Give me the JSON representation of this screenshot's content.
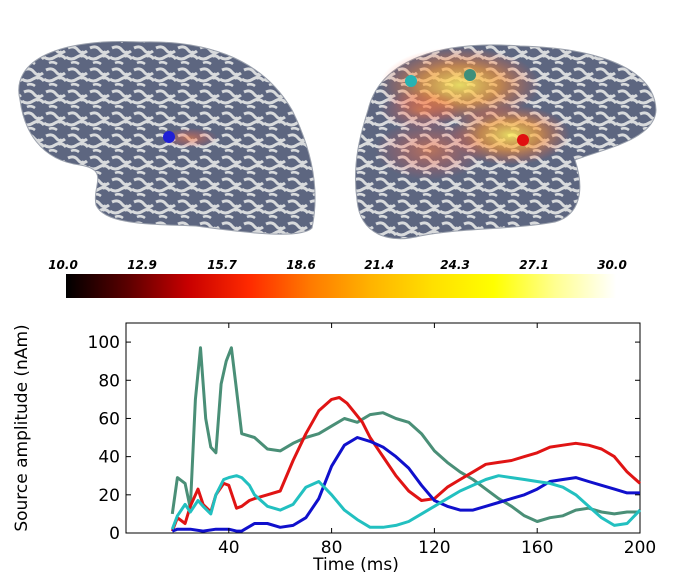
{
  "colorbar": {
    "ticks": [
      "10.0",
      "12.9",
      "15.7",
      "18.6",
      "21.4",
      "24.3",
      "27.1",
      "30.0"
    ],
    "colors": [
      "#000000",
      "#5a0000",
      "#c80000",
      "#ff2a00",
      "#ff7a00",
      "#ffb400",
      "#ffe000",
      "#ffff00",
      "#ffff90",
      "#ffffff"
    ]
  },
  "brain_markers": [
    {
      "name": "left-blue-source",
      "color": "#1f1fd6"
    },
    {
      "name": "right-cyan-source",
      "color": "#27b3b3"
    },
    {
      "name": "right-teal-source",
      "color": "#3f8f7a"
    },
    {
      "name": "right-red-source",
      "color": "#e01010"
    }
  ],
  "chart_data": {
    "type": "line",
    "xlabel": "Time (ms)",
    "ylabel": "Source amplitude (nAm)",
    "xlim": [
      0,
      200
    ],
    "ylim": [
      0,
      110
    ],
    "xticks": [
      40,
      80,
      120,
      160,
      200
    ],
    "yticks": [
      0,
      20,
      40,
      60,
      80,
      100
    ],
    "grid": false,
    "series": [
      {
        "color": "#4a8f77",
        "x": [
          18,
          20,
          23,
          25,
          27,
          29,
          31,
          33,
          35,
          37,
          39,
          41,
          43,
          45,
          50,
          55,
          60,
          65,
          70,
          75,
          80,
          85,
          90,
          95,
          100,
          105,
          110,
          115,
          120,
          125,
          130,
          135,
          140,
          145,
          150,
          155,
          160,
          165,
          170,
          175,
          180,
          185,
          190,
          195,
          200
        ],
        "y": [
          10,
          29,
          26,
          13,
          70,
          97,
          60,
          45,
          42,
          78,
          90,
          97,
          75,
          52,
          50,
          44,
          43,
          47,
          50,
          52,
          56,
          60,
          58,
          62,
          63,
          60,
          58,
          52,
          43,
          37,
          32,
          28,
          23,
          18,
          14,
          9,
          6,
          8,
          9,
          12,
          13,
          11,
          10,
          11,
          11
        ]
      },
      {
        "color": "#e01414",
        "x": [
          18,
          20,
          23,
          25,
          28,
          30,
          33,
          35,
          38,
          40,
          43,
          45,
          48,
          50,
          55,
          60,
          65,
          70,
          75,
          80,
          83,
          86,
          89,
          92,
          95,
          100,
          105,
          110,
          115,
          120,
          125,
          130,
          135,
          140,
          145,
          150,
          155,
          160,
          165,
          170,
          175,
          180,
          185,
          190,
          195,
          200
        ],
        "y": [
          1,
          8,
          5,
          14,
          23,
          15,
          11,
          20,
          26,
          25,
          13,
          14,
          17,
          18,
          20,
          22,
          38,
          52,
          64,
          70,
          71,
          68,
          63,
          58,
          50,
          40,
          30,
          22,
          17,
          18,
          24,
          28,
          32,
          36,
          37,
          38,
          40,
          42,
          45,
          46,
          47,
          46,
          44,
          40,
          32,
          26
        ]
      },
      {
        "color": "#1010cc",
        "x": [
          18,
          20,
          25,
          30,
          35,
          40,
          43,
          45,
          50,
          55,
          60,
          65,
          70,
          75,
          80,
          85,
          90,
          95,
          100,
          105,
          110,
          115,
          120,
          125,
          130,
          135,
          140,
          145,
          150,
          155,
          160,
          165,
          170,
          175,
          180,
          185,
          190,
          195,
          200
        ],
        "y": [
          1,
          2,
          2,
          1,
          2,
          2,
          1,
          1,
          5,
          5,
          3,
          4,
          8,
          18,
          35,
          46,
          50,
          48,
          45,
          40,
          34,
          25,
          17,
          14,
          12,
          12,
          14,
          16,
          18,
          20,
          23,
          27,
          28,
          29,
          27,
          25,
          23,
          21,
          21
        ]
      },
      {
        "color": "#22c0c0",
        "x": [
          18,
          20,
          23,
          25,
          28,
          30,
          33,
          35,
          38,
          40,
          43,
          45,
          48,
          50,
          55,
          60,
          65,
          70,
          75,
          80,
          85,
          90,
          95,
          100,
          105,
          110,
          115,
          120,
          125,
          130,
          135,
          140,
          145,
          150,
          155,
          160,
          165,
          170,
          175,
          180,
          185,
          190,
          195,
          200
        ],
        "y": [
          2,
          9,
          15,
          11,
          17,
          14,
          10,
          20,
          28,
          29,
          30,
          29,
          25,
          20,
          14,
          12,
          15,
          24,
          27,
          20,
          12,
          7,
          3,
          3,
          4,
          6,
          10,
          14,
          18,
          22,
          25,
          28,
          30,
          29,
          28,
          27,
          26,
          24,
          20,
          14,
          8,
          4,
          5,
          12
        ]
      }
    ]
  }
}
